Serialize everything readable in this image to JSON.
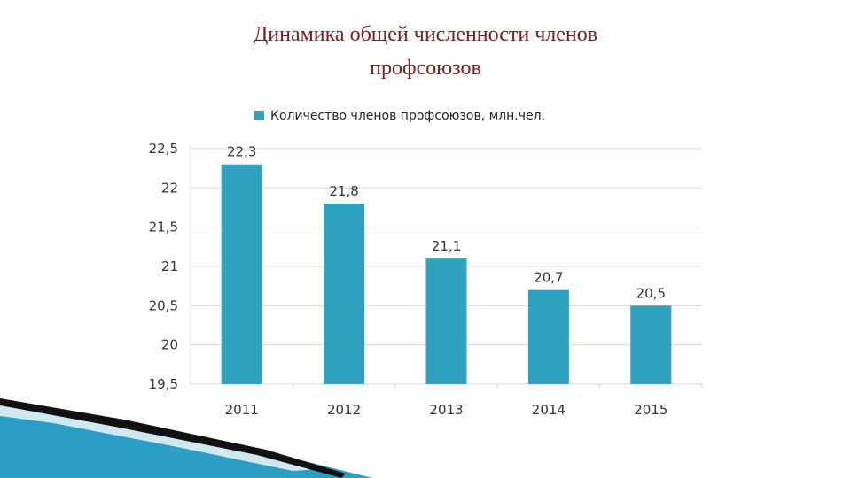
{
  "slide": {
    "title_line1": "Динамика общей численности членов",
    "title_line2": "профсоюзов",
    "colors": {
      "title": "#7b1b1b",
      "bar": "#2ea3c0",
      "grid": "#d9d9d9",
      "decor_dark": "#111111",
      "decor_blue": "#2a9ec5"
    }
  },
  "chart_data": {
    "type": "bar",
    "categories": [
      "2011",
      "2012",
      "2013",
      "2014",
      "2015"
    ],
    "series": [
      {
        "name": "Количество членов профсоюзов, млн.чел.",
        "values": [
          22.3,
          21.8,
          21.1,
          20.7,
          20.5
        ],
        "labels": [
          "22,3",
          "21,8",
          "21,1",
          "20,7",
          "20,5"
        ]
      }
    ],
    "y_ticks": [
      19.5,
      20,
      20.5,
      21,
      21.5,
      22,
      22.5
    ],
    "y_tick_labels": [
      "19,5",
      "20",
      "20,5",
      "21",
      "21,5",
      "22",
      "22,5"
    ],
    "ylim": [
      19.5,
      22.5
    ],
    "grid": true,
    "legend": "top"
  }
}
